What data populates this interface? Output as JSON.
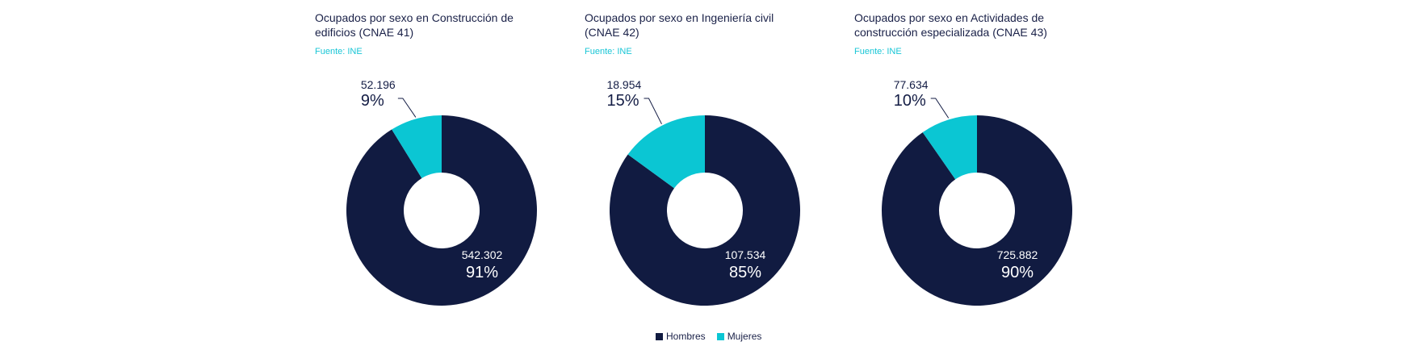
{
  "colors": {
    "Hombres": "#111b41",
    "Mujeres": "#0bc6d3"
  },
  "legend": [
    {
      "label": "Hombres"
    },
    {
      "label": "Mujeres"
    }
  ],
  "chart_data": [
    {
      "type": "pie",
      "title": "Ocupados por sexo en Construcción de edificios (CNAE 41)",
      "source": "Fuente: INE",
      "slices": [
        {
          "name": "Hombres",
          "value": 542302,
          "value_label": "542.302",
          "percent_label": "91%"
        },
        {
          "name": "Mujeres",
          "value": 52196,
          "value_label": "52.196",
          "percent_label": "9%"
        }
      ]
    },
    {
      "type": "pie",
      "title": "Ocupados por sexo en Ingeniería civil (CNAE 42)",
      "source": "Fuente: INE",
      "slices": [
        {
          "name": "Hombres",
          "value": 107534,
          "value_label": "107.534",
          "percent_label": "85%"
        },
        {
          "name": "Mujeres",
          "value": 18954,
          "value_label": "18.954",
          "percent_label": "15%"
        }
      ]
    },
    {
      "type": "pie",
      "title": "Ocupados por sexo en Actividades de construcción especializada (CNAE 43)",
      "source": "Fuente: INE",
      "slices": [
        {
          "name": "Hombres",
          "value": 725882,
          "value_label": "725.882",
          "percent_label": "90%"
        },
        {
          "name": "Mujeres",
          "value": 77634,
          "value_label": "77.634",
          "percent_label": "10%"
        }
      ]
    }
  ]
}
